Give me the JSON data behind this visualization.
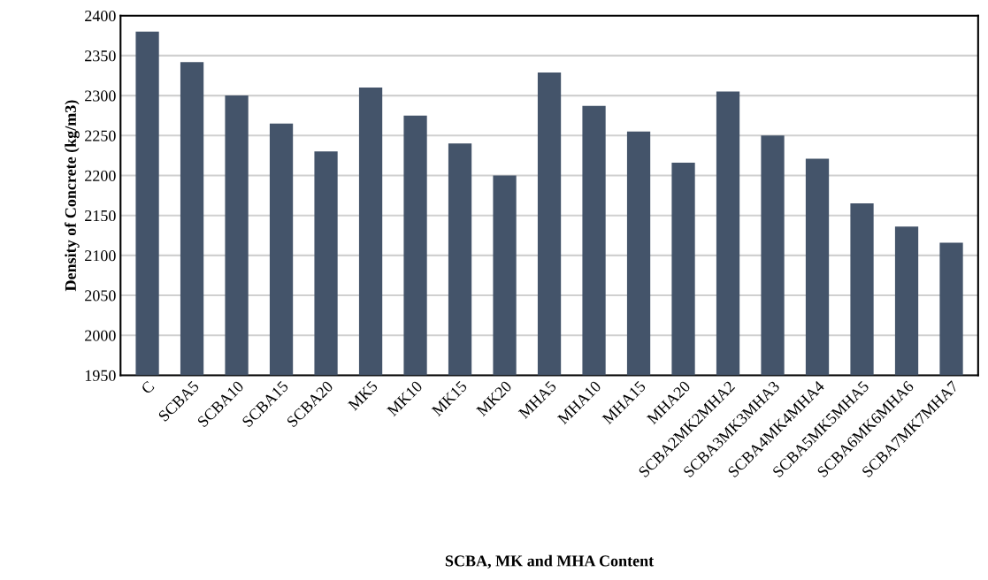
{
  "chart_data": {
    "type": "bar",
    "xlabel": "SCBA, MK and MHA Content",
    "ylabel": "Density of Concrete (kg/m3)",
    "categories": [
      "C",
      "SCBA5",
      "SCBA10",
      "SCBA15",
      "SCBA20",
      "MK5",
      "MK10",
      "MK15",
      "MK20",
      "MHA5",
      "MHA10",
      "MHA15",
      "MHA20",
      "SCBA2MK2MHA2",
      "SCBA3MK3MHA3",
      "SCBA4MK4MHA4",
      "SCBA5MK5MHA5",
      "SCBA6MK6MHA6",
      "SCBA7MK7MHA7"
    ],
    "values": [
      2380,
      2342,
      2300,
      2265,
      2230,
      2310,
      2275,
      2240,
      2200,
      2329,
      2287,
      2255,
      2216,
      2305,
      2250,
      2221,
      2165,
      2136,
      2116
    ],
    "color": "#44546a",
    "ylim": [
      1950,
      2400
    ],
    "yticks": [
      1950,
      2000,
      2050,
      2100,
      2150,
      2200,
      2250,
      2300,
      2350,
      2400
    ],
    "grid": "y",
    "legend": false
  }
}
